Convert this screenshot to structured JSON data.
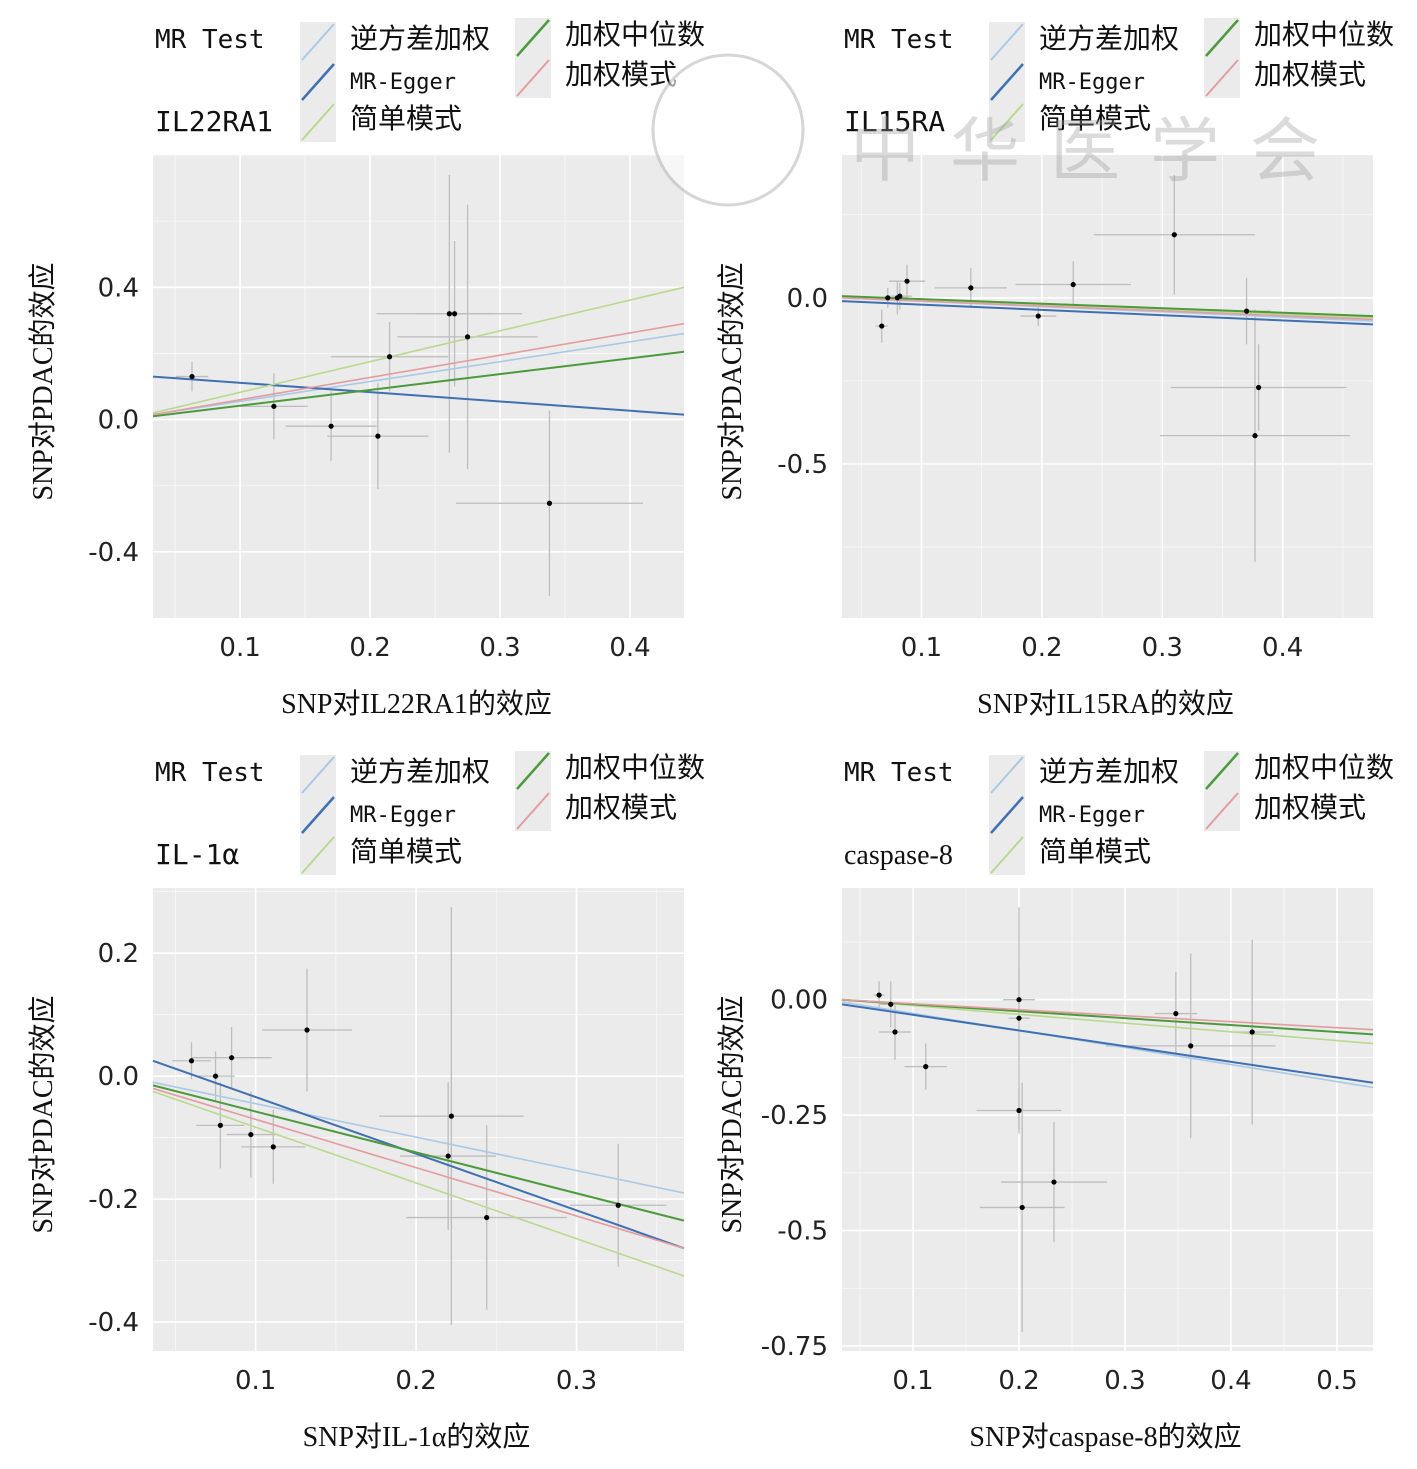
{
  "watermark": "中华医学会",
  "colors": {
    "逆方差加权": "#a9c9e6",
    "MR-Egger": "#3f70b2",
    "简单模式": "#b9d98e",
    "加权中位数": "#4b9b3c",
    "加权模式": "#e39ca0",
    "panel_bg": "#ebebeb",
    "point": "#000000",
    "errorbar": "#bdbdbd"
  },
  "chart_data": [
    {
      "type": "scatter",
      "title": "IL22RA1",
      "legend_title": "MR Test",
      "legend": [
        "逆方差加权",
        "MR-Egger",
        "简单模式",
        "加权中位数",
        "加权模式"
      ],
      "legend_placement": "top",
      "xlabel": "SNP对IL22RA1的效应",
      "ylabel": "SNP对PDAC的效应",
      "xlim": [
        0.033,
        0.4415
      ],
      "ylim": [
        -0.6,
        0.8
      ],
      "xticks": [
        0.1,
        0.2,
        0.3,
        0.4
      ],
      "xtick_labels": [
        "0.1",
        "0.2",
        "0.3",
        "0.4"
      ],
      "yticks": [
        0.4,
        0.0,
        -0.4
      ],
      "ytick_labels": [
        "0.4",
        "0.0",
        "-0.4"
      ],
      "grid": true,
      "points": [
        {
          "x": 0.063,
          "y": 0.13,
          "xerr": 0.0125,
          "yerr": 0.045
        },
        {
          "x": 0.126,
          "y": 0.04,
          "xerr": 0.026,
          "yerr": 0.1
        },
        {
          "x": 0.17,
          "y": -0.02,
          "xerr": 0.035,
          "yerr": 0.105
        },
        {
          "x": 0.206,
          "y": -0.05,
          "xerr": 0.039,
          "yerr": 0.16
        },
        {
          "x": 0.215,
          "y": 0.19,
          "xerr": 0.045,
          "yerr": 0.105
        },
        {
          "x": 0.261,
          "y": 0.32,
          "xerr": 0.056,
          "yerr": 0.42
        },
        {
          "x": 0.265,
          "y": 0.32,
          "xerr": 0.03,
          "yerr": 0.22
        },
        {
          "x": 0.275,
          "y": 0.25,
          "xerr": 0.054,
          "yerr": 0.4
        },
        {
          "x": 0.338,
          "y": -0.253,
          "xerr": 0.072,
          "yerr": 0.28
        }
      ],
      "lines": [
        {
          "method": "逆方差加权",
          "x": [
            0.033,
            0.4415
          ],
          "y": [
            0.015,
            0.26
          ]
        },
        {
          "method": "MR-Egger",
          "x": [
            0.033,
            0.4415
          ],
          "y": [
            0.13,
            0.015
          ]
        },
        {
          "method": "简单模式",
          "x": [
            0.033,
            0.4415
          ],
          "y": [
            0.02,
            0.4
          ]
        },
        {
          "method": "加权中位数",
          "x": [
            0.033,
            0.4415
          ],
          "y": [
            0.01,
            0.205
          ]
        },
        {
          "method": "加权模式",
          "x": [
            0.033,
            0.4415
          ],
          "y": [
            0.015,
            0.29
          ]
        }
      ]
    },
    {
      "type": "scatter",
      "title": "IL15RA",
      "legend_title": "MR Test",
      "legend": [
        "逆方差加权",
        "MR-Egger",
        "简单模式",
        "加权中位数",
        "加权模式"
      ],
      "legend_placement": "top",
      "xlabel": "SNP对IL15RA的效应",
      "ylabel": "SNP对PDAC的效应",
      "xlim": [
        0.034,
        0.475
      ],
      "ylim": [
        -0.964,
        0.43
      ],
      "xticks": [
        0.1,
        0.2,
        0.3,
        0.4
      ],
      "xtick_labels": [
        "0.1",
        "0.2",
        "0.3",
        "0.4"
      ],
      "yticks": [
        0.0,
        -0.5
      ],
      "ytick_labels": [
        "0.0",
        "-0.5"
      ],
      "grid": true,
      "points": [
        {
          "x": 0.067,
          "y": -0.085,
          "xerr": 0.005,
          "yerr": 0.05
        },
        {
          "x": 0.072,
          "y": 0.0,
          "xerr": 0.006,
          "yerr": 0.03
        },
        {
          "x": 0.08,
          "y": 0.0,
          "xerr": 0.008,
          "yerr": 0.05
        },
        {
          "x": 0.082,
          "y": 0.005,
          "xerr": 0.01,
          "yerr": 0.04
        },
        {
          "x": 0.088,
          "y": 0.05,
          "xerr": 0.015,
          "yerr": 0.05
        },
        {
          "x": 0.141,
          "y": 0.03,
          "xerr": 0.03,
          "yerr": 0.06
        },
        {
          "x": 0.197,
          "y": -0.055,
          "xerr": 0.015,
          "yerr": 0.03
        },
        {
          "x": 0.226,
          "y": 0.04,
          "xerr": 0.048,
          "yerr": 0.07
        },
        {
          "x": 0.31,
          "y": 0.19,
          "xerr": 0.067,
          "yerr": 0.18
        },
        {
          "x": 0.37,
          "y": -0.04,
          "xerr": 0.02,
          "yerr": 0.1
        },
        {
          "x": 0.38,
          "y": -0.27,
          "xerr": 0.073,
          "yerr": 0.13
        },
        {
          "x": 0.377,
          "y": -0.415,
          "xerr": 0.079,
          "yerr": 0.38
        }
      ],
      "lines": [
        {
          "method": "逆方差加权",
          "x": [
            0.034,
            0.475
          ],
          "y": [
            0.0,
            -0.07
          ]
        },
        {
          "method": "MR-Egger",
          "x": [
            0.034,
            0.475
          ],
          "y": [
            -0.01,
            -0.08
          ]
        },
        {
          "method": "简单模式",
          "x": [
            0.034,
            0.475
          ],
          "y": [
            0.005,
            -0.06
          ]
        },
        {
          "method": "加权中位数",
          "x": [
            0.034,
            0.475
          ],
          "y": [
            0.005,
            -0.055
          ]
        },
        {
          "method": "加权模式",
          "x": [
            0.034,
            0.475
          ],
          "y": [
            0.0,
            -0.065
          ]
        }
      ]
    },
    {
      "type": "scatter",
      "title": "IL-1α",
      "legend_title": "MR Test",
      "legend": [
        "逆方差加权",
        "MR-Egger",
        "简单模式",
        "加权中位数",
        "加权模式"
      ],
      "legend_placement": "top",
      "xlabel": "SNP对IL-1α的效应",
      "ylabel": "SNP对PDAC的效应",
      "xlim": [
        0.036,
        0.367
      ],
      "ylim": [
        -0.447,
        0.306
      ],
      "xticks": [
        0.1,
        0.2,
        0.3
      ],
      "xtick_labels": [
        "0.1",
        "0.2",
        "0.3"
      ],
      "yticks": [
        0.2,
        0.0,
        -0.2,
        -0.4
      ],
      "ytick_labels": [
        "0.2",
        "0.0",
        "-0.2",
        "-0.4"
      ],
      "grid": true,
      "points": [
        {
          "x": 0.06,
          "y": 0.025,
          "xerr": 0.012,
          "yerr": 0.03
        },
        {
          "x": 0.075,
          "y": 0.0,
          "xerr": 0.012,
          "yerr": 0.04
        },
        {
          "x": 0.078,
          "y": -0.08,
          "xerr": 0.015,
          "yerr": 0.07
        },
        {
          "x": 0.085,
          "y": 0.03,
          "xerr": 0.025,
          "yerr": 0.05
        },
        {
          "x": 0.097,
          "y": -0.095,
          "xerr": 0.015,
          "yerr": 0.07
        },
        {
          "x": 0.111,
          "y": -0.115,
          "xerr": 0.02,
          "yerr": 0.06
        },
        {
          "x": 0.132,
          "y": 0.075,
          "xerr": 0.028,
          "yerr": 0.1
        },
        {
          "x": 0.22,
          "y": -0.13,
          "xerr": 0.03,
          "yerr": 0.12
        },
        {
          "x": 0.222,
          "y": -0.065,
          "xerr": 0.045,
          "yerr": 0.34
        },
        {
          "x": 0.244,
          "y": -0.23,
          "xerr": 0.05,
          "yerr": 0.15
        },
        {
          "x": 0.326,
          "y": -0.21,
          "xerr": 0.03,
          "yerr": 0.1
        }
      ],
      "lines": [
        {
          "method": "逆方差加权",
          "x": [
            0.036,
            0.367
          ],
          "y": [
            -0.01,
            -0.19
          ]
        },
        {
          "method": "MR-Egger",
          "x": [
            0.036,
            0.367
          ],
          "y": [
            0.025,
            -0.28
          ]
        },
        {
          "method": "简单模式",
          "x": [
            0.036,
            0.367
          ],
          "y": [
            -0.025,
            -0.325
          ]
        },
        {
          "method": "加权中位数",
          "x": [
            0.036,
            0.367
          ],
          "y": [
            -0.015,
            -0.235
          ]
        },
        {
          "method": "加权模式",
          "x": [
            0.036,
            0.367
          ],
          "y": [
            -0.02,
            -0.28
          ]
        }
      ]
    },
    {
      "type": "scatter",
      "title": "caspase-8",
      "legend_title": "MR Test",
      "legend": [
        "逆方差加权",
        "MR-Egger",
        "简单模式",
        "加权中位数",
        "加权模式"
      ],
      "legend_placement": "top",
      "xlabel": "SNP对caspase-8的效应",
      "ylabel": "SNP对PDAC的效应",
      "xlim": [
        0.033,
        0.534
      ],
      "ylim": [
        -0.761,
        0.242
      ],
      "xticks": [
        0.1,
        0.2,
        0.3,
        0.4,
        0.5
      ],
      "xtick_labels": [
        "0.1",
        "0.2",
        "0.3",
        "0.4",
        "0.5"
      ],
      "yticks": [
        0.0,
        -0.25,
        -0.5,
        -0.75
      ],
      "ytick_labels": [
        "0.00",
        "-0.25",
        "-0.5",
        "-0.75"
      ],
      "grid": true,
      "points": [
        {
          "x": 0.068,
          "y": 0.01,
          "xerr": 0.005,
          "yerr": 0.03
        },
        {
          "x": 0.079,
          "y": -0.01,
          "xerr": 0.01,
          "yerr": 0.05
        },
        {
          "x": 0.083,
          "y": -0.07,
          "xerr": 0.015,
          "yerr": 0.06
        },
        {
          "x": 0.112,
          "y": -0.145,
          "xerr": 0.02,
          "yerr": 0.05
        },
        {
          "x": 0.2,
          "y": 0.0,
          "xerr": 0.015,
          "yerr": 0.07
        },
        {
          "x": 0.2,
          "y": -0.04,
          "xerr": 0.01,
          "yerr": 0.24
        },
        {
          "x": 0.2,
          "y": -0.24,
          "xerr": 0.04,
          "yerr": 0.05
        },
        {
          "x": 0.203,
          "y": -0.45,
          "xerr": 0.04,
          "yerr": 0.27
        },
        {
          "x": 0.233,
          "y": -0.395,
          "xerr": 0.05,
          "yerr": 0.13
        },
        {
          "x": 0.348,
          "y": -0.03,
          "xerr": 0.02,
          "yerr": 0.09
        },
        {
          "x": 0.362,
          "y": -0.1,
          "xerr": 0.08,
          "yerr": 0.2
        },
        {
          "x": 0.42,
          "y": -0.07,
          "xerr": 0.02,
          "yerr": 0.2
        }
      ],
      "lines": [
        {
          "method": "逆方差加权",
          "x": [
            0.033,
            0.534
          ],
          "y": [
            -0.005,
            -0.19
          ]
        },
        {
          "method": "MR-Egger",
          "x": [
            0.033,
            0.534
          ],
          "y": [
            -0.01,
            -0.18
          ]
        },
        {
          "method": "简单模式",
          "x": [
            0.033,
            0.534
          ],
          "y": [
            0.0,
            -0.095
          ]
        },
        {
          "method": "加权中位数",
          "x": [
            0.033,
            0.534
          ],
          "y": [
            0.0,
            -0.075
          ]
        },
        {
          "method": "加权模式",
          "x": [
            0.033,
            0.534
          ],
          "y": [
            0.0,
            -0.065
          ]
        }
      ]
    }
  ]
}
